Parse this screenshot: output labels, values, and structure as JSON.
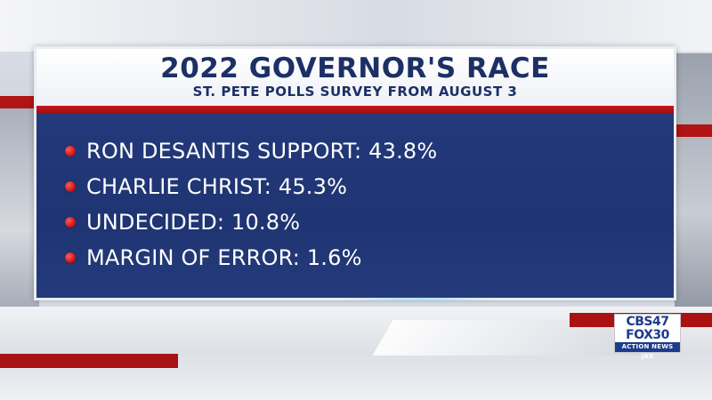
{
  "graphic": {
    "title": "2022 GOVERNOR'S RACE",
    "subtitle": "ST. PETE POLLS SURVEY FROM AUGUST 3",
    "bullets": [
      {
        "text": "RON DESANTIS SUPPORT: 43.8%"
      },
      {
        "text": "CHARLIE CHRIST: 45.3%"
      },
      {
        "text": "UNDECIDED: 10.8%"
      },
      {
        "text": "MARGIN OF ERROR: 1.6%"
      }
    ]
  },
  "logo": {
    "line1": "CBS47",
    "line2": "FOX30",
    "line3": "ACTION NEWS JAX"
  },
  "colors": {
    "panel_blue": "#233a78",
    "accent_red": "#c8161a",
    "header_text": "#1c2f66"
  }
}
